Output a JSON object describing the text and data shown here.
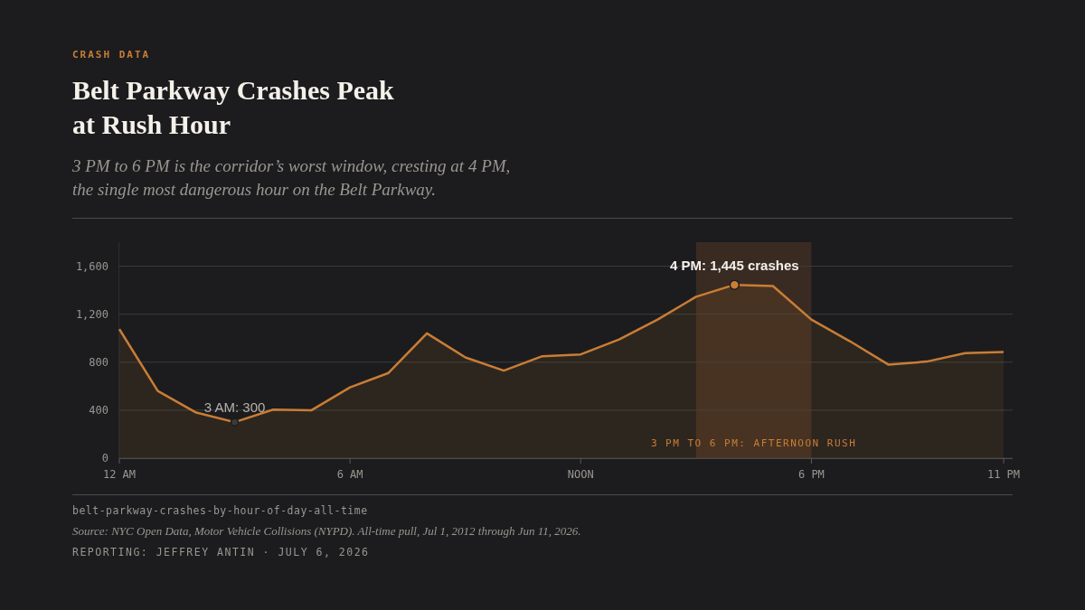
{
  "chart_data": {
    "type": "area",
    "title": "Belt Parkway Crashes Peak at Rush Hour",
    "subtitle": "3 PM to 6 PM is the corridor’s worst window, cresting at 4 PM, the single most dangerous hour on the Belt Parkway.",
    "categories": [
      "12 AM",
      null,
      null,
      null,
      null,
      null,
      "6 AM",
      null,
      null,
      null,
      null,
      null,
      "NOON",
      null,
      null,
      null,
      null,
      null,
      "6 PM",
      null,
      null,
      null,
      null,
      "11 PM"
    ],
    "series": [
      {
        "color": "#c97d35",
        "values": [
          1075,
          560,
          380,
          300,
          405,
          400,
          590,
          710,
          1040,
          840,
          730,
          850,
          865,
          990,
          1155,
          1345,
          1445,
          1435,
          1155,
          975,
          780,
          805,
          875,
          885
        ]
      }
    ],
    "ylim": [
      0,
      1800
    ],
    "yticks": [
      0,
      400,
      800,
      {
        "value": 1200,
        "label": "1,200"
      },
      {
        "value": 1600,
        "label": "1,600"
      }
    ],
    "grid": "y",
    "marker": "none",
    "line_style": "solid",
    "annotations": [
      "CRASH DATA",
      "3 PM TO 6 PM: AFTERNOON RUSH",
      {
        "text": "4 PM: 1,445 crashes",
        "y": 1445
      },
      {
        "text": "3 AM: 300",
        "y": 300
      },
      "belt-parkway-crashes-by-hour-of-day-all-time",
      "Source: NYC Open Data, Motor Vehicle Collisions (NYPD). All-time pull, Jul 1, 2012 through Jun 11, 2026.",
      "REPORTING: JEFFREY ANTIN · JULY 6, 2026"
    ]
  }
}
